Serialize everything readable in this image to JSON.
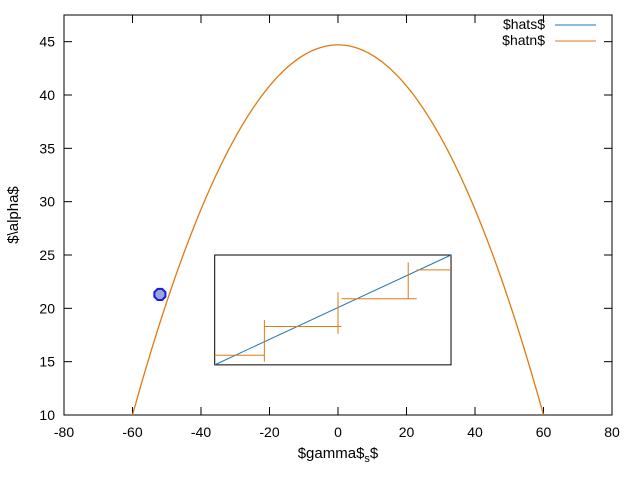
{
  "chart_data": {
    "type": "line",
    "title": "",
    "xlabel": "$gamma$",
    "xlabel_subscript": "s",
    "xlabel_suffix": "$",
    "ylabel": "$\\alpha$",
    "xlim": [
      -80,
      80
    ],
    "ylim": [
      10,
      47.5
    ],
    "xticks": [
      -80,
      -60,
      -40,
      -20,
      0,
      20,
      40,
      60,
      80
    ],
    "yticks": [
      10,
      15,
      20,
      25,
      30,
      35,
      40,
      45
    ],
    "grid": false,
    "legend_position": "top-right",
    "curve": {
      "description_series": "hatn",
      "x": [
        -60,
        -52,
        -45,
        -40,
        -30,
        -20,
        -10,
        0,
        10,
        20,
        30,
        40,
        45,
        52,
        60
      ],
      "y": [
        10.0,
        21.3,
        25.9,
        29.3,
        35.3,
        40.1,
        43.5,
        44.7,
        43.5,
        40.1,
        35.3,
        29.3,
        25.9,
        21.3,
        10.0
      ]
    },
    "marker": {
      "x": -52,
      "y": 21.3
    },
    "inset": {
      "xlim": [
        -36,
        33
      ],
      "ylim": [
        14.7,
        25
      ],
      "hats": {
        "x": [
          -36,
          33
        ],
        "y": [
          14.7,
          25
        ]
      },
      "hatn_steps": [
        {
          "x0": -36,
          "x1": -21.5,
          "y": 15.6
        },
        {
          "x0": -21.5,
          "x1": 1,
          "y": 18.3
        },
        {
          "x0": 1,
          "x1": 23,
          "y": 20.9
        },
        {
          "x0": 23,
          "x1": 33,
          "y": 23.6
        }
      ],
      "hatn_vertical_crosses": [
        {
          "x": -21.5,
          "y0": 15.0,
          "y1": 18.9
        },
        {
          "x": 0,
          "y0": 17.6,
          "y1": 21.5
        },
        {
          "x": 20.5,
          "y0": 20.9,
          "y1": 24.3
        }
      ]
    },
    "series": [
      {
        "name": "$hats$",
        "color": "#1f77b4"
      },
      {
        "name": "$hatn$",
        "color": "#e07a10"
      }
    ]
  }
}
